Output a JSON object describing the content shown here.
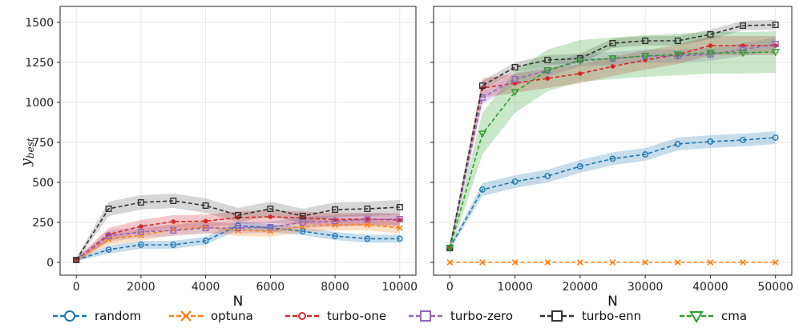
{
  "chart_data": [
    {
      "type": "line",
      "title": "",
      "xlabel": "N",
      "ylabel": "y_best",
      "xlim": [
        -500,
        10500
      ],
      "ylim": [
        -80,
        1600
      ],
      "xticks": [
        0,
        2000,
        4000,
        6000,
        8000,
        10000
      ],
      "yticks": [
        0,
        250,
        500,
        750,
        1000,
        1250,
        1500
      ],
      "xtick_labels": [
        "0",
        "2000",
        "4000",
        "6000",
        "8000",
        "10000"
      ],
      "ytick_labels": [
        "0",
        "250",
        "500",
        "750",
        "1000",
        "1250",
        "1500"
      ],
      "grid": true,
      "series": [
        {
          "name": "random",
          "color": "#1f77b4",
          "marker": "circle",
          "x": [
            0,
            1000,
            2000,
            3000,
            4000,
            5000,
            6000,
            7000,
            8000,
            9000,
            10000
          ],
          "values": [
            15,
            80,
            110,
            110,
            135,
            230,
            215,
            195,
            165,
            148,
            148
          ],
          "band": 25
        },
        {
          "name": "optuna",
          "color": "#ff7f0e",
          "marker": "x",
          "x": [
            0,
            1000,
            2000,
            3000,
            4000,
            5000,
            6000,
            7000,
            8000,
            9000,
            10000
          ],
          "values": [
            15,
            145,
            170,
            205,
            220,
            200,
            195,
            225,
            235,
            235,
            215
          ],
          "band": 35
        },
        {
          "name": "turbo-one",
          "color": "#d62728",
          "marker": "dot",
          "x": [
            0,
            1000,
            2000,
            3000,
            4000,
            5000,
            6000,
            7000,
            8000,
            9000,
            10000
          ],
          "values": [
            15,
            175,
            225,
            255,
            258,
            280,
            285,
            278,
            268,
            270,
            265
          ],
          "band": 40
        },
        {
          "name": "turbo-zero",
          "color": "#9467bd",
          "marker": "square",
          "x": [
            0,
            1000,
            2000,
            3000,
            4000,
            5000,
            6000,
            7000,
            8000,
            9000,
            10000
          ],
          "values": [
            15,
            165,
            190,
            200,
            215,
            215,
            220,
            250,
            258,
            268,
            270
          ],
          "band": 35
        },
        {
          "name": "turbo-enn",
          "color": "#333333",
          "marker": "square",
          "x": [
            0,
            1000,
            2000,
            3000,
            4000,
            5000,
            6000,
            7000,
            8000,
            9000,
            10000
          ],
          "values": [
            15,
            335,
            375,
            385,
            355,
            295,
            335,
            290,
            330,
            335,
            345
          ],
          "band": 45
        }
      ]
    },
    {
      "type": "line",
      "title": "",
      "xlabel": "N",
      "ylabel": "",
      "xlim": [
        -2500,
        52500
      ],
      "ylim": [
        -80,
        1600
      ],
      "xticks": [
        0,
        10000,
        20000,
        30000,
        40000,
        50000
      ],
      "yticks": [
        0,
        250,
        500,
        750,
        1000,
        1250,
        1500
      ],
      "xtick_labels": [
        "0",
        "10000",
        "20000",
        "30000",
        "40000",
        "50000"
      ],
      "grid": true,
      "series": [
        {
          "name": "random",
          "color": "#1f77b4",
          "marker": "circle",
          "x": [
            0,
            5000,
            10000,
            15000,
            20000,
            25000,
            30000,
            35000,
            40000,
            45000,
            50000
          ],
          "values": [
            90,
            455,
            505,
            540,
            600,
            648,
            675,
            740,
            755,
            765,
            780
          ],
          "band": 40
        },
        {
          "name": "optuna",
          "color": "#ff7f0e",
          "marker": "x",
          "x": [
            0,
            5000,
            10000,
            15000,
            20000,
            25000,
            30000,
            35000,
            40000,
            45000,
            50000
          ],
          "values": [
            0,
            0,
            0,
            0,
            0,
            0,
            0,
            0,
            0,
            0,
            0
          ],
          "band": 0
        },
        {
          "name": "turbo-one",
          "color": "#d62728",
          "marker": "dot",
          "x": [
            0,
            5000,
            10000,
            15000,
            20000,
            25000,
            30000,
            35000,
            40000,
            45000,
            50000
          ],
          "values": [
            90,
            1090,
            1120,
            1150,
            1180,
            1225,
            1265,
            1300,
            1355,
            1355,
            1355
          ],
          "band": 60
        },
        {
          "name": "turbo-zero",
          "color": "#9467bd",
          "marker": "square",
          "x": [
            0,
            5000,
            10000,
            15000,
            20000,
            25000,
            30000,
            35000,
            40000,
            45000,
            50000
          ],
          "values": [
            90,
            1030,
            1145,
            1200,
            1265,
            1275,
            1290,
            1290,
            1300,
            1330,
            1365
          ],
          "band": 40
        },
        {
          "name": "turbo-enn",
          "color": "#333333",
          "marker": "square",
          "x": [
            0,
            5000,
            10000,
            15000,
            20000,
            25000,
            30000,
            35000,
            40000,
            45000,
            50000
          ],
          "values": [
            90,
            1105,
            1220,
            1265,
            1275,
            1370,
            1385,
            1385,
            1425,
            1480,
            1485
          ],
          "band": 30
        },
        {
          "name": "cma",
          "color": "#2ca02c",
          "marker": "triangle",
          "x": [
            0,
            5000,
            10000,
            15000,
            20000,
            25000,
            30000,
            35000,
            40000,
            45000,
            50000
          ],
          "values": [
            90,
            805,
            1065,
            1200,
            1260,
            1275,
            1290,
            1300,
            1310,
            1310,
            1315
          ],
          "band": 130
        }
      ]
    }
  ],
  "legend": {
    "placement": "bottom",
    "items": [
      {
        "label": "random",
        "color": "#1f77b4",
        "marker": "circle"
      },
      {
        "label": "optuna",
        "color": "#ff7f0e",
        "marker": "x"
      },
      {
        "label": "turbo-one",
        "color": "#d62728",
        "marker": "dot"
      },
      {
        "label": "turbo-zero",
        "color": "#9467bd",
        "marker": "square"
      },
      {
        "label": "turbo-enn",
        "color": "#333333",
        "marker": "square"
      },
      {
        "label": "cma",
        "color": "#2ca02c",
        "marker": "triangle"
      }
    ]
  },
  "ylabel_main": "y",
  "ylabel_sub": "best"
}
